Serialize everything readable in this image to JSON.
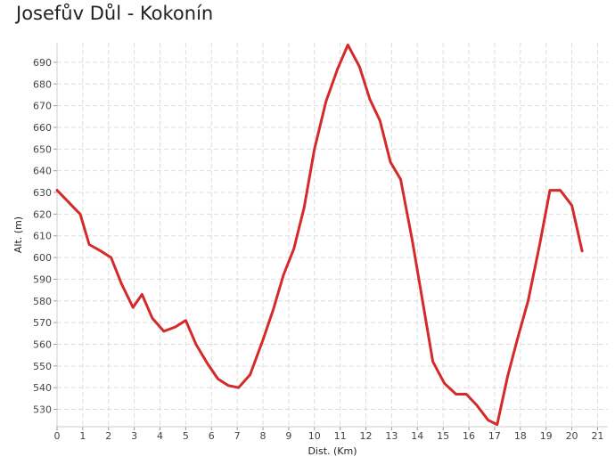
{
  "chart_data": {
    "type": "line",
    "title": "Josefův Důl - Kokonín",
    "xlabel": "Dist. (Km)",
    "ylabel": "Alt. (m)",
    "xlim": [
      0,
      21.4
    ],
    "ylim": [
      522,
      699
    ],
    "xticks": [
      0,
      1,
      2,
      3,
      4,
      5,
      6,
      7,
      8,
      9,
      10,
      11,
      12,
      13,
      14,
      15,
      16,
      17,
      18,
      19,
      20,
      21
    ],
    "yticks": [
      530,
      540,
      550,
      560,
      570,
      580,
      590,
      600,
      610,
      620,
      630,
      640,
      650,
      660,
      670,
      680,
      690
    ],
    "grid": true,
    "line_color": "#d42a2a",
    "series": [
      {
        "x": [
          0,
          0.9,
          1.25,
          1.7,
          2.1,
          2.5,
          2.95,
          3.3,
          3.7,
          4.15,
          4.6,
          5.0,
          5.4,
          5.85,
          6.25,
          6.65,
          7.05,
          7.5,
          8.0,
          8.4,
          8.8,
          9.2,
          9.6,
          10.0,
          10.45,
          10.9,
          11.3,
          11.75,
          12.15,
          12.55,
          12.95,
          13.35,
          13.8,
          14.2,
          14.6,
          15.05,
          15.5,
          15.9,
          16.3,
          16.75,
          17.1,
          17.5,
          17.9,
          18.3,
          18.75,
          19.15,
          19.55,
          20.0,
          20.4
        ],
        "y": [
          631,
          620,
          606,
          603,
          600,
          588,
          577,
          583,
          572,
          566,
          568,
          571,
          560,
          551,
          544,
          541,
          540,
          546,
          562,
          576,
          592,
          604,
          623,
          650,
          672,
          687,
          698,
          688,
          673,
          663,
          644,
          636,
          608,
          580,
          552,
          542,
          537,
          537,
          532,
          525,
          523,
          545,
          563,
          580,
          606,
          631,
          631,
          624,
          603
        ]
      }
    ]
  }
}
